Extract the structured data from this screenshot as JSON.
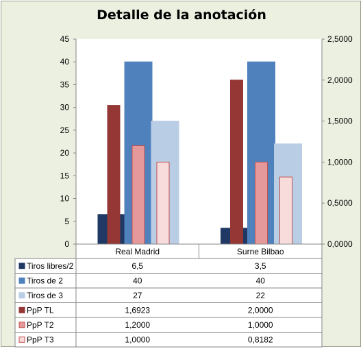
{
  "chart_data": {
    "type": "bar",
    "title": "Detalle de la anotación",
    "categories": [
      "Real Madrid",
      "Surne Bilbao"
    ],
    "y_left": {
      "min": 0,
      "max": 45,
      "step": 5,
      "tick_labels": [
        "0",
        "5",
        "10",
        "15",
        "20",
        "25",
        "30",
        "35",
        "40",
        "45"
      ]
    },
    "y_right": {
      "min": 0,
      "max": 2.5,
      "step": 0.5,
      "tick_labels": [
        "0,0000",
        "0,5000",
        "1,0000",
        "1,5000",
        "2,0000",
        "2,5000"
      ]
    },
    "series": [
      {
        "name": "Tiros libres/2",
        "axis": "left",
        "color": "#1f3864",
        "edge": "#1f3864",
        "values": [
          6.5,
          3.5
        ],
        "labels": [
          "6,5",
          "3,5"
        ]
      },
      {
        "name": "Tiros de 2",
        "axis": "left",
        "color": "#4f81bd",
        "edge": "#4f81bd",
        "values": [
          40,
          40
        ],
        "labels": [
          "40",
          "40"
        ]
      },
      {
        "name": "Tiros de 3",
        "axis": "left",
        "color": "#b9cde5",
        "edge": "#b9cde5",
        "values": [
          27,
          22
        ],
        "labels": [
          "27",
          "22"
        ]
      },
      {
        "name": "PpP TL",
        "axis": "right",
        "color": "#953735",
        "edge": "#953735",
        "values": [
          1.6923,
          2.0
        ],
        "labels": [
          "1,6923",
          "2,0000"
        ]
      },
      {
        "name": "PpP T2",
        "axis": "right",
        "color": "#e6999a",
        "edge": "#c0504d",
        "values": [
          1.2,
          1.0
        ],
        "labels": [
          "1,2000",
          "1,0000"
        ]
      },
      {
        "name": "PpP T3",
        "axis": "right",
        "color": "#f8dcdc",
        "edge": "#c0504d",
        "values": [
          1.0,
          0.8182
        ],
        "labels": [
          "1,0000",
          "0,8182"
        ]
      }
    ],
    "legend": "data-table"
  }
}
